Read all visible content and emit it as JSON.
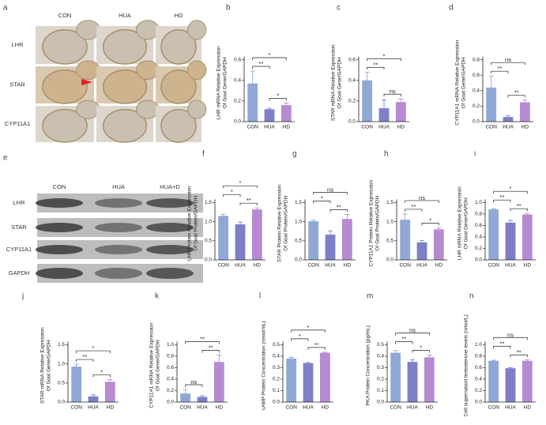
{
  "panel_a": {
    "label": "a",
    "columns": [
      "CON",
      "HUA",
      "HD"
    ],
    "rows": [
      "LHR",
      "STAR",
      "CYP11A1"
    ]
  },
  "panel_e": {
    "label": "e",
    "columns": [
      "CON",
      "HUA",
      "HUA+D"
    ],
    "rows": [
      "LHR",
      "STAR",
      "CYP11A1",
      "GAPDH"
    ]
  },
  "chart_data": [
    {
      "type": "bar",
      "panel": "b",
      "ylabel": [
        "LHR mRNA Relative Expression",
        "Of Goal Gene/GAPDH"
      ],
      "categories": [
        "CON",
        "HUA",
        "HD"
      ],
      "values": [
        0.37,
        0.12,
        0.16
      ],
      "errors": [
        0.12,
        0.01,
        0.02
      ],
      "colors": [
        "#8fa8d6",
        "#7d80c6",
        "#b68bd2"
      ],
      "ylim": [
        0,
        0.6
      ],
      "yticks": [
        {
          "value": 0,
          "label": "0.0"
        },
        0.2,
        0.4,
        0.6
      ],
      "comparisons": [
        {
          "groups": [
            "HUA",
            "HD"
          ],
          "label": "*"
        },
        {
          "groups": [
            "CON",
            "HUA"
          ],
          "label": "**"
        },
        {
          "groups": [
            "CON",
            "HD"
          ],
          "label": "*"
        }
      ]
    },
    {
      "type": "bar",
      "panel": "c",
      "ylabel": [
        "STAR mRNA Relative Expression",
        "Of Goal Gene/GAPDH"
      ],
      "categories": [
        "CON",
        "HUA",
        "HD"
      ],
      "values": [
        0.4,
        0.13,
        0.19
      ],
      "errors": [
        0.08,
        0.08,
        0.03
      ],
      "colors": [
        "#8fa8d6",
        "#7d80c6",
        "#b68bd2"
      ],
      "ylim": [
        0,
        0.6
      ],
      "yticks": [
        {
          "value": 0,
          "label": "0.0"
        },
        0.2,
        0.4,
        0.6
      ],
      "comparisons": [
        {
          "groups": [
            "HUA",
            "HD"
          ],
          "label": "ns"
        },
        {
          "groups": [
            "CON",
            "HUA"
          ],
          "label": "**"
        },
        {
          "groups": [
            "CON",
            "HD"
          ],
          "label": "*"
        }
      ]
    },
    {
      "type": "bar",
      "panel": "d",
      "ylabel": [
        "CYP11A1 mRNA Relative Expression",
        "Of Goal Gene/GAPDH"
      ],
      "categories": [
        "CON",
        "HUA",
        "HD"
      ],
      "values": [
        0.44,
        0.06,
        0.25
      ],
      "errors": [
        0.15,
        0.02,
        0.03
      ],
      "colors": [
        "#8fa8d6",
        "#7d80c6",
        "#b68bd2"
      ],
      "ylim": [
        0,
        0.8
      ],
      "yticks": [
        {
          "value": 0,
          "label": "0.0"
        },
        0.2,
        0.4,
        0.6,
        0.8
      ],
      "comparisons": [
        {
          "groups": [
            "HUA",
            "HD"
          ],
          "label": "**"
        },
        {
          "groups": [
            "CON",
            "HUA"
          ],
          "label": "**"
        },
        {
          "groups": [
            "CON",
            "HD"
          ],
          "label": "ns"
        }
      ]
    },
    {
      "type": "bar",
      "panel": "f",
      "ylabel": [
        "LHR Protein Relative Expression",
        "Of Goal Protein/GAPDH"
      ],
      "categories": [
        "CON",
        "HUA",
        "HD"
      ],
      "values": [
        1.15,
        0.93,
        1.32
      ],
      "errors": [
        0.04,
        0.06,
        0.04
      ],
      "colors": [
        "#8fa8d6",
        "#7d80c6",
        "#b68bd2"
      ],
      "ylim": [
        0,
        1.5
      ],
      "yticks": [
        {
          "value": 0,
          "label": "0.0"
        },
        0.5,
        {
          "value": 1,
          "label": "1.0"
        },
        1.5
      ],
      "comparisons": [
        {
          "groups": [
            "HUA",
            "HD"
          ],
          "label": "**"
        },
        {
          "groups": [
            "CON",
            "HUA"
          ],
          "label": "*"
        },
        {
          "groups": [
            "CON",
            "HD"
          ],
          "label": "*"
        }
      ]
    },
    {
      "type": "bar",
      "panel": "g",
      "ylabel": [
        "STAR Protein Relative Expression",
        "Of Goal Protein/GAPDH"
      ],
      "categories": [
        "CON",
        "HUA",
        "HD"
      ],
      "values": [
        1.01,
        0.66,
        1.07
      ],
      "errors": [
        0.03,
        0.1,
        0.12
      ],
      "colors": [
        "#8fa8d6",
        "#7d80c6",
        "#b68bd2"
      ],
      "ylim": [
        0,
        1.5
      ],
      "yticks": [
        {
          "value": 0,
          "label": "0.0"
        },
        0.5,
        {
          "value": 1,
          "label": "1.0"
        },
        1.5
      ],
      "comparisons": [
        {
          "groups": [
            "HUA",
            "HD"
          ],
          "label": "**"
        },
        {
          "groups": [
            "CON",
            "HUA"
          ],
          "label": "*"
        },
        {
          "groups": [
            "CON",
            "HD"
          ],
          "label": "ns"
        }
      ]
    },
    {
      "type": "bar",
      "panel": "h",
      "ylabel": [
        "CYP11A1 Protein Relative Expression",
        "Of Goal Protein/GAPDH"
      ],
      "categories": [
        "CON",
        "HUA",
        "HD"
      ],
      "values": [
        1.05,
        0.46,
        0.8
      ],
      "errors": [
        0.15,
        0.05,
        0.04
      ],
      "colors": [
        "#8fa8d6",
        "#7d80c6",
        "#b68bd2"
      ],
      "ylim": [
        0,
        1.5
      ],
      "yticks": [
        {
          "value": 0,
          "label": "0.0"
        },
        0.5,
        {
          "value": 1,
          "label": "1.0"
        },
        1.5
      ],
      "comparisons": [
        {
          "groups": [
            "HUA",
            "HD"
          ],
          "label": "*"
        },
        {
          "groups": [
            "CON",
            "HUA"
          ],
          "label": "**"
        },
        {
          "groups": [
            "CON",
            "HD"
          ],
          "label": "ns"
        }
      ]
    },
    {
      "type": "bar",
      "panel": "i",
      "ylabel": [
        "LHR mRNA Relative Expression",
        "Of Goal Gene/GAPDH"
      ],
      "categories": [
        "CON",
        "HUA",
        "HD"
      ],
      "values": [
        0.88,
        0.65,
        0.79
      ],
      "errors": [
        0.01,
        0.04,
        0.02
      ],
      "colors": [
        "#8fa8d6",
        "#7d80c6",
        "#b68bd2"
      ],
      "ylim": [
        0,
        1
      ],
      "yticks": [
        {
          "value": 0,
          "label": "0.0"
        },
        0.2,
        0.4,
        0.6,
        0.8,
        {
          "value": 1,
          "label": "1.0"
        }
      ],
      "comparisons": [
        {
          "groups": [
            "HUA",
            "HD"
          ],
          "label": "**"
        },
        {
          "groups": [
            "CON",
            "HUA"
          ],
          "label": "**"
        },
        {
          "groups": [
            "CON",
            "HD"
          ],
          "label": "*"
        }
      ]
    },
    {
      "type": "bar",
      "panel": "j",
      "ylabel": [
        "STAR mRNA Relative Expression",
        "Of Goal Gene/GAPDH"
      ],
      "categories": [
        "CON",
        "HUA",
        "HD"
      ],
      "values": [
        0.93,
        0.15,
        0.53
      ],
      "errors": [
        0.06,
        0.04,
        0.06
      ],
      "colors": [
        "#8fa8d6",
        "#7d80c6",
        "#b68bd2"
      ],
      "ylim": [
        0,
        1.5
      ],
      "yticks": [
        {
          "value": 0,
          "label": "0.0"
        },
        0.5,
        {
          "value": 1,
          "label": "1.0"
        },
        1.5
      ],
      "comparisons": [
        {
          "groups": [
            "HUA",
            "HD"
          ],
          "label": "*"
        },
        {
          "groups": [
            "CON",
            "HUA"
          ],
          "label": "**"
        },
        {
          "groups": [
            "CON",
            "HD"
          ],
          "label": "*"
        }
      ]
    },
    {
      "type": "bar",
      "panel": "k",
      "ylabel": [
        "CYP11A1 mRNA Relative Expression",
        "Of Goal Gene/GAPDH"
      ],
      "categories": [
        "CON",
        "HUA",
        "HD"
      ],
      "values": [
        0.15,
        0.09,
        0.7
      ],
      "errors": [
        0.07,
        0.02,
        0.12
      ],
      "colors": [
        "#8fa8d6",
        "#7d80c6",
        "#b68bd2"
      ],
      "ylim": [
        0,
        1
      ],
      "yticks": [
        {
          "value": 0,
          "label": "0.0"
        },
        0.2,
        0.4,
        0.6,
        0.8,
        {
          "value": 1,
          "label": "1.0"
        }
      ],
      "comparisons": [
        {
          "groups": [
            "CON",
            "HUA"
          ],
          "label": "ns"
        },
        {
          "groups": [
            "HUA",
            "HD"
          ],
          "label": "**"
        },
        {
          "groups": [
            "CON",
            "HD"
          ],
          "label": "**"
        }
      ]
    },
    {
      "type": "bar",
      "panel": "l",
      "ylabel": [
        "cAMP Protein Concentration (nmol/mL)"
      ],
      "categories": [
        "CON",
        "HUA",
        "HD"
      ],
      "values": [
        0.38,
        0.34,
        0.43
      ],
      "errors": [
        0.01,
        0.005,
        0.005
      ],
      "colors": [
        "#8fa8d6",
        "#7d80c6",
        "#b68bd2"
      ],
      "ylim": [
        0,
        0.5
      ],
      "yticks": [
        {
          "value": 0,
          "label": "0.0"
        },
        0.1,
        0.2,
        0.3,
        0.4,
        0.5
      ],
      "comparisons": [
        {
          "groups": [
            "HUA",
            "HD"
          ],
          "label": "**"
        },
        {
          "groups": [
            "CON",
            "HUA"
          ],
          "label": "*"
        },
        {
          "groups": [
            "CON",
            "HD"
          ],
          "label": "*"
        }
      ]
    },
    {
      "type": "bar",
      "panel": "m",
      "ylabel": [
        "PKA Protein Concentration (pg/mL)"
      ],
      "categories": [
        "CON",
        "HUA",
        "HD"
      ],
      "values": [
        0.43,
        0.35,
        0.39
      ],
      "errors": [
        0.02,
        0.02,
        0.02
      ],
      "colors": [
        "#8fa8d6",
        "#7d80c6",
        "#b68bd2"
      ],
      "ylim": [
        0,
        0.5
      ],
      "yticks": [
        {
          "value": 0,
          "label": "0.0"
        },
        0.1,
        0.2,
        0.3,
        0.4,
        0.5
      ],
      "comparisons": [
        {
          "groups": [
            "HUA",
            "HD"
          ],
          "label": "*"
        },
        {
          "groups": [
            "CON",
            "HUA"
          ],
          "label": "**"
        },
        {
          "groups": [
            "CON",
            "HD"
          ],
          "label": "ns"
        }
      ]
    },
    {
      "type": "bar",
      "panel": "n",
      "ylabel": [
        "Cell supernatant testosterone levels (nmol/L)"
      ],
      "categories": [
        "CON",
        "HUA",
        "HD"
      ],
      "values": [
        0.72,
        0.59,
        0.72
      ],
      "errors": [
        0.01,
        0.01,
        0.02
      ],
      "colors": [
        "#8fa8d6",
        "#7d80c6",
        "#b68bd2"
      ],
      "ylim": [
        0,
        1
      ],
      "yticks": [
        {
          "value": 0,
          "label": "0.0"
        },
        0.2,
        0.4,
        0.6,
        0.8,
        {
          "value": 1,
          "label": "1.0"
        }
      ],
      "comparisons": [
        {
          "groups": [
            "HUA",
            "HD"
          ],
          "label": "**"
        },
        {
          "groups": [
            "CON",
            "HUA"
          ],
          "label": "**"
        },
        {
          "groups": [
            "CON",
            "HD"
          ],
          "label": "ns"
        }
      ]
    }
  ]
}
